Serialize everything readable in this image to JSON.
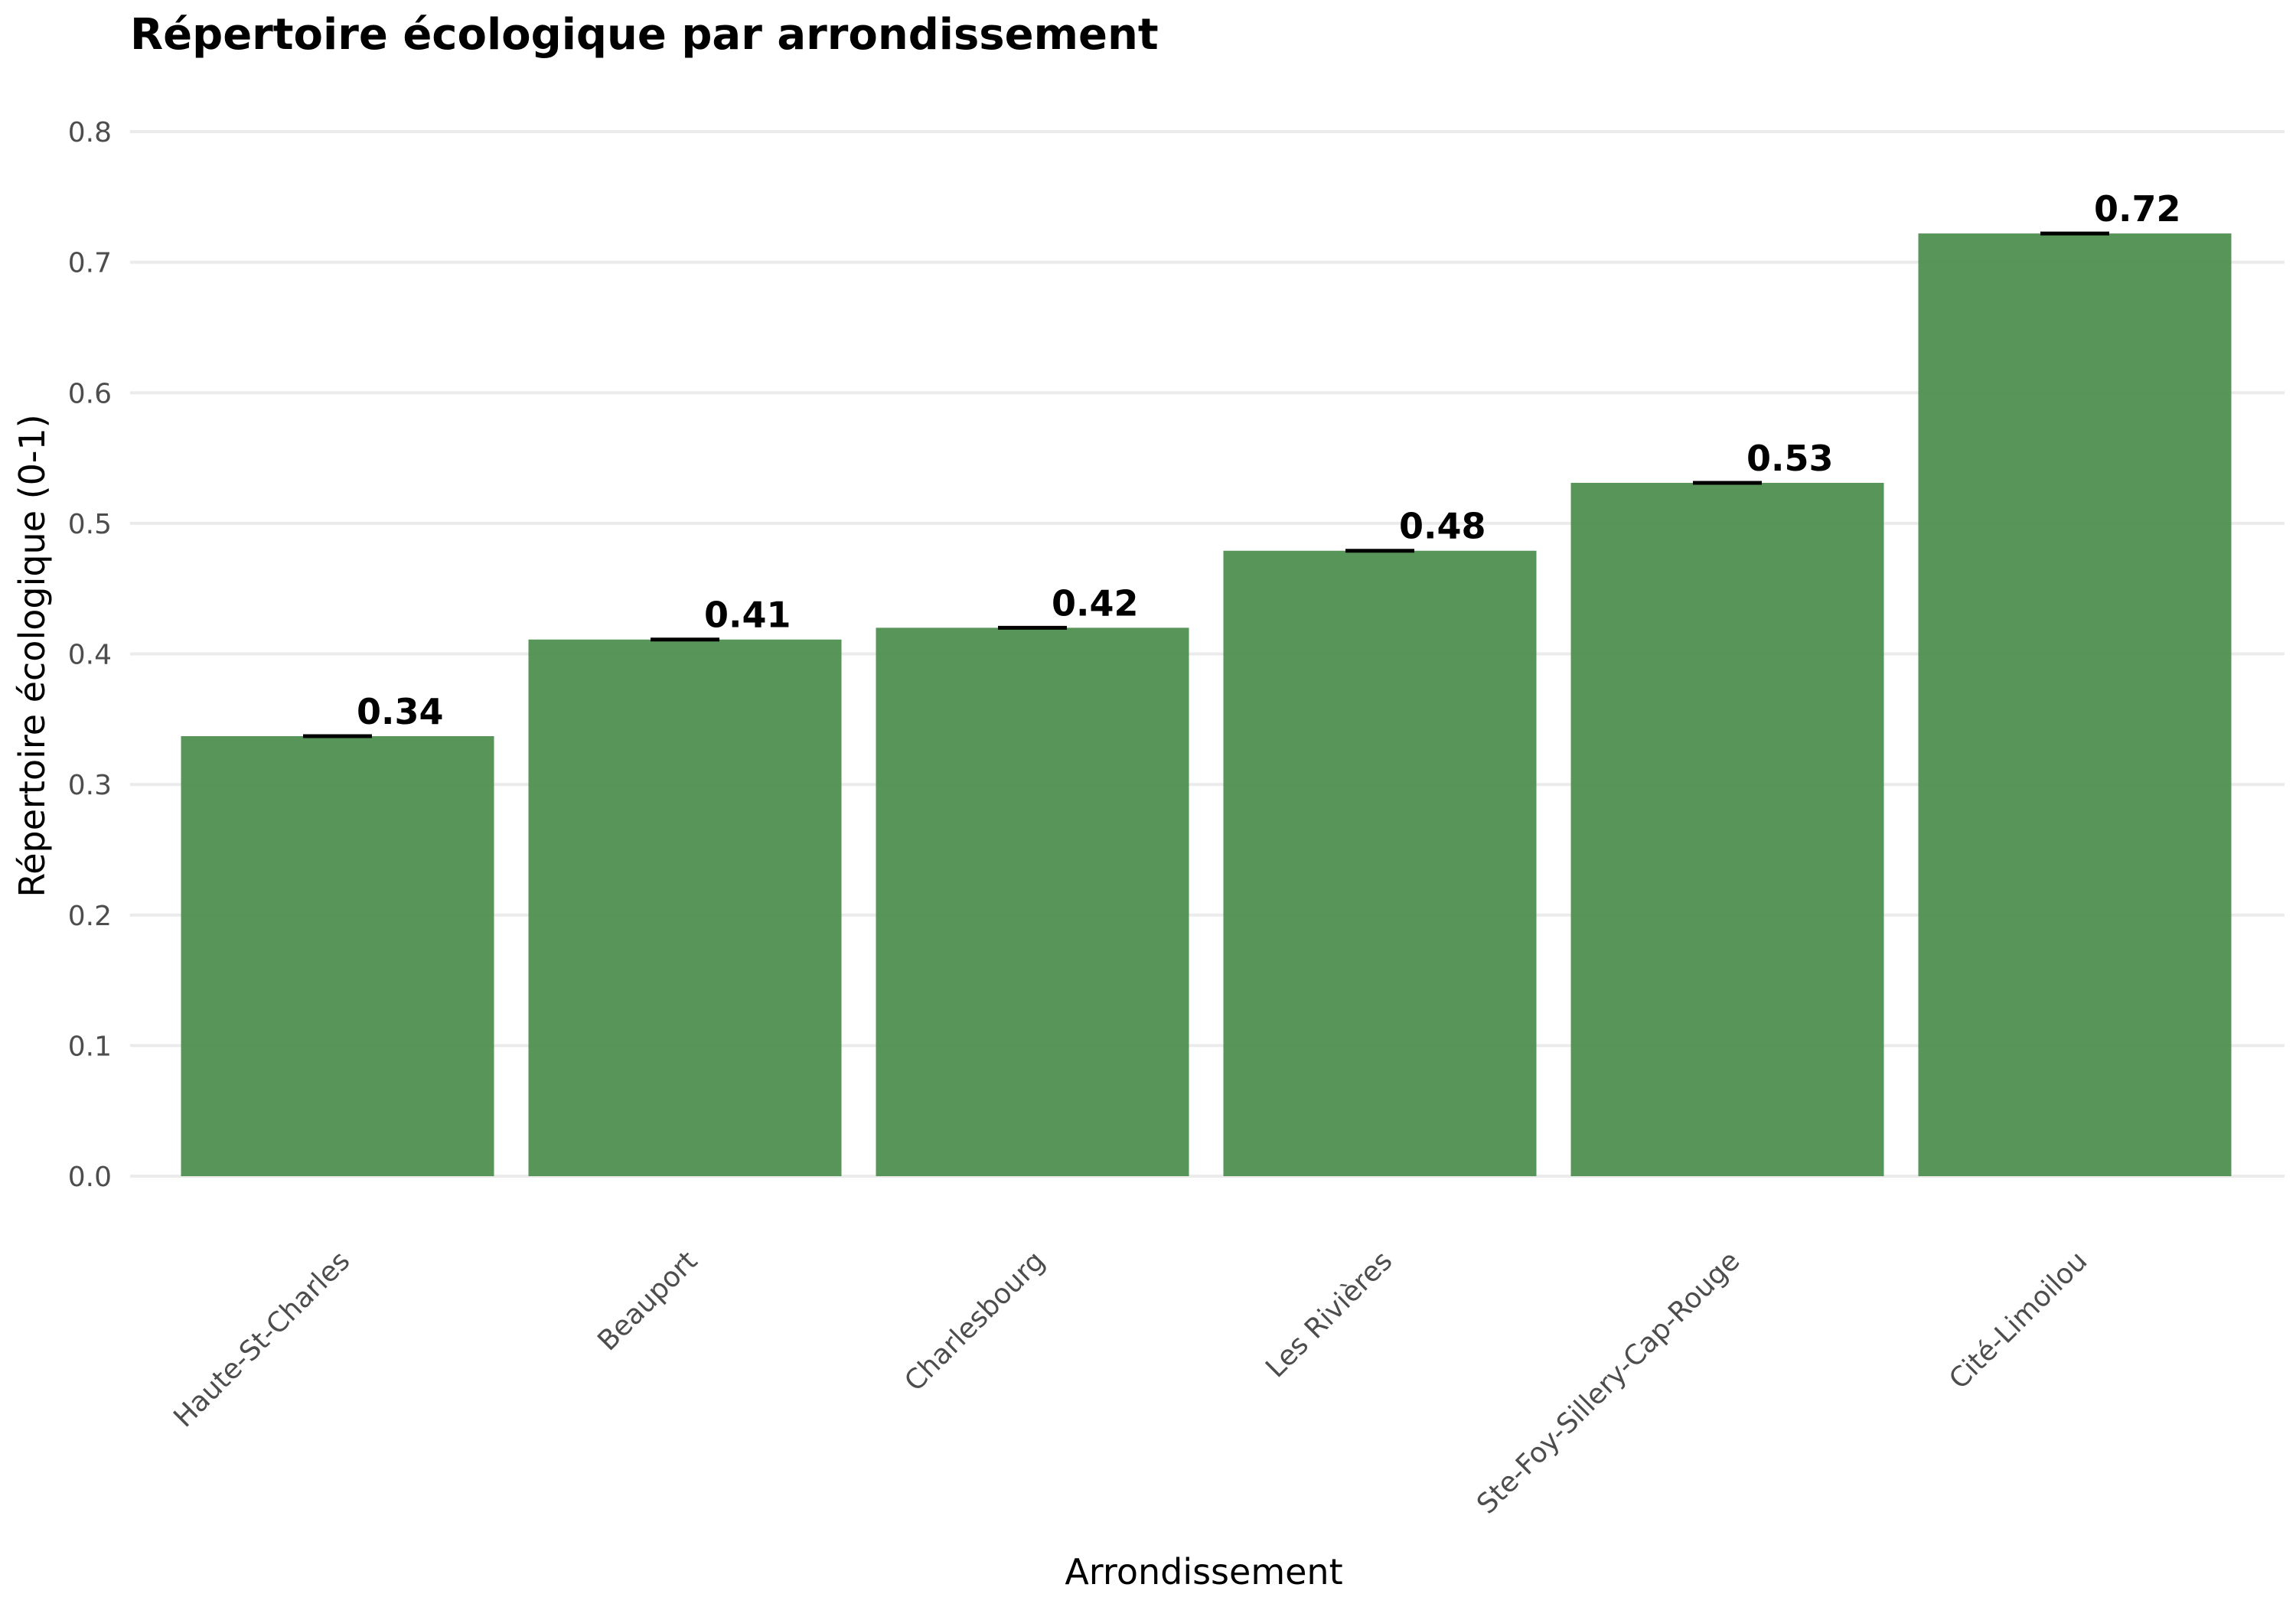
{
  "chart_data": {
    "type": "bar",
    "title": "Répertoire écologique par arrondissement",
    "xlabel": "Arrondissement",
    "ylabel": "Répertoire écologique (0-1)",
    "categories": [
      "Haute-St-Charles",
      "Beauport",
      "Charlesbourg",
      "Les Rivières",
      "Ste-Foy-Sillery-Cap-Rouge",
      "Cité-Limoilou"
    ],
    "values": [
      0.337,
      0.411,
      0.42,
      0.479,
      0.531,
      0.722
    ],
    "data_labels": [
      "0.34",
      "0.41",
      "0.42",
      "0.48",
      "0.53",
      "0.72"
    ],
    "ylim": [
      0,
      0.8
    ],
    "yticks": [
      0.0,
      0.1,
      0.2,
      0.3,
      0.4,
      0.5,
      0.6,
      0.7,
      0.8
    ],
    "ytick_labels": [
      "0.0",
      "0.1",
      "0.2",
      "0.3",
      "0.4",
      "0.5",
      "0.6",
      "0.7",
      "0.8"
    ],
    "grid": true,
    "legend": "none",
    "bar_color": "#4a8c4a",
    "marker_color": "#000000"
  }
}
